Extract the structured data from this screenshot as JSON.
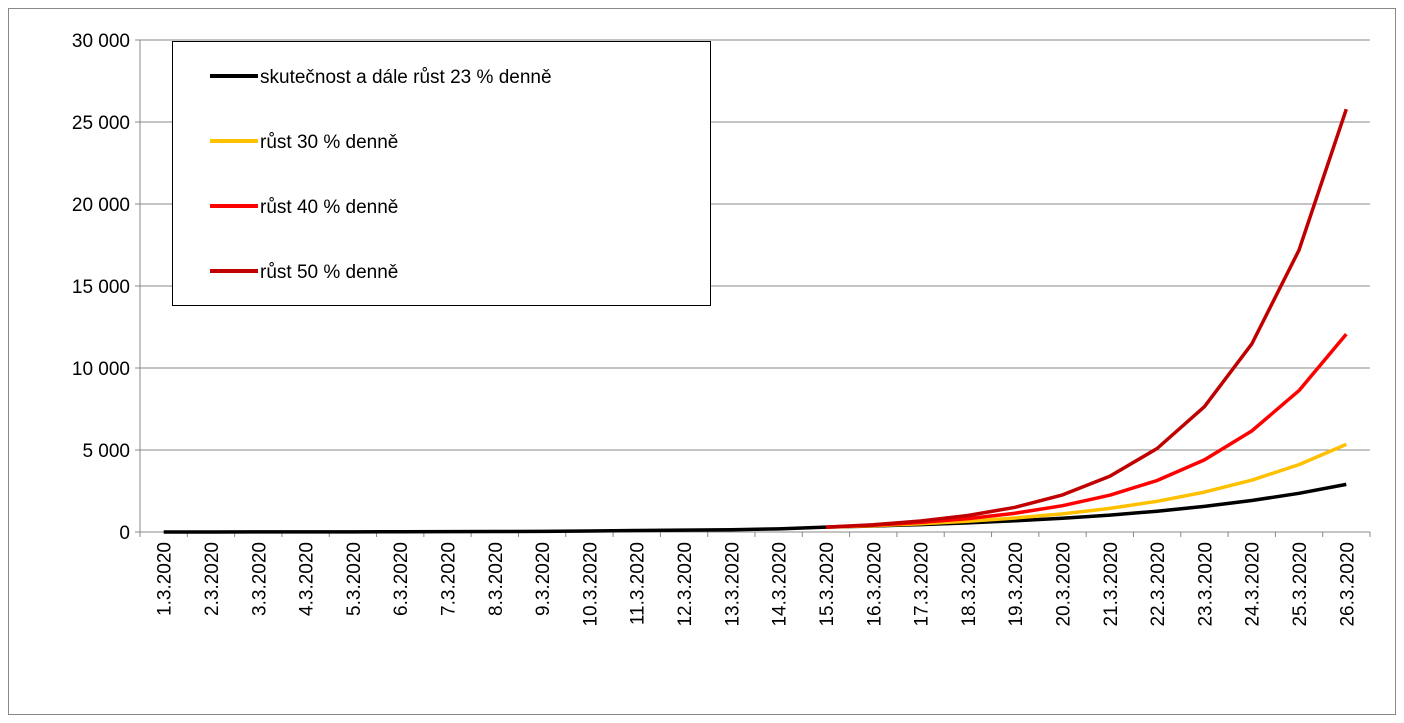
{
  "chart_data": {
    "type": "line",
    "categories": [
      "1.3.2020",
      "2.3.2020",
      "3.3.2020",
      "4.3.2020",
      "5.3.2020",
      "6.3.2020",
      "7.3.2020",
      "8.3.2020",
      "9.3.2020",
      "10.3.2020",
      "11.3.2020",
      "12.3.2020",
      "13.3.2020",
      "14.3.2020",
      "15.3.2020",
      "16.3.2020",
      "17.3.2020",
      "18.3.2020",
      "19.3.2020",
      "20.3.2020",
      "21.3.2020",
      "22.3.2020",
      "23.3.2020",
      "24.3.2020",
      "25.3.2020",
      "26.3.2020"
    ],
    "series": [
      {
        "name": "skutečnost a dále růst 23 % denně",
        "color": "#000000",
        "values": [
          3,
          3,
          5,
          5,
          8,
          19,
          26,
          32,
          38,
          63,
          94,
          116,
          141,
          189,
          298,
          367,
          451,
          554,
          682,
          839,
          1032,
          1269,
          1561,
          1920,
          2362,
          2905
        ]
      },
      {
        "name": "růst 30 % denně",
        "color": "#ffc000",
        "values": [
          null,
          null,
          null,
          null,
          null,
          null,
          null,
          null,
          null,
          null,
          null,
          null,
          null,
          null,
          298,
          387,
          504,
          655,
          851,
          1106,
          1438,
          1870,
          2431,
          3160,
          4108,
          5340
        ]
      },
      {
        "name": "růst 40 % denně",
        "color": "#ff0000",
        "values": [
          null,
          null,
          null,
          null,
          null,
          null,
          null,
          null,
          null,
          null,
          null,
          null,
          null,
          null,
          298,
          417,
          584,
          818,
          1145,
          1603,
          2244,
          3141,
          4398,
          6157,
          8620,
          12068
        ]
      },
      {
        "name": "růst 50 % denně",
        "color": "#c00000",
        "values": [
          null,
          null,
          null,
          null,
          null,
          null,
          null,
          null,
          null,
          null,
          null,
          null,
          null,
          null,
          298,
          447,
          671,
          1006,
          1509,
          2263,
          3395,
          5092,
          7638,
          11457,
          17186,
          25779
        ]
      }
    ],
    "ylim": [
      0,
      30000
    ],
    "yticks": [
      0,
      {
        "value": 5000,
        "label": "5 000"
      },
      {
        "value": 10000,
        "label": "10 000"
      },
      {
        "value": 15000,
        "label": "15 000"
      },
      {
        "value": 20000,
        "label": "20 000"
      },
      {
        "value": 25000,
        "label": "25 000"
      },
      {
        "value": 30000,
        "label": "30 000"
      }
    ],
    "grid": true,
    "legend": "upper left"
  }
}
